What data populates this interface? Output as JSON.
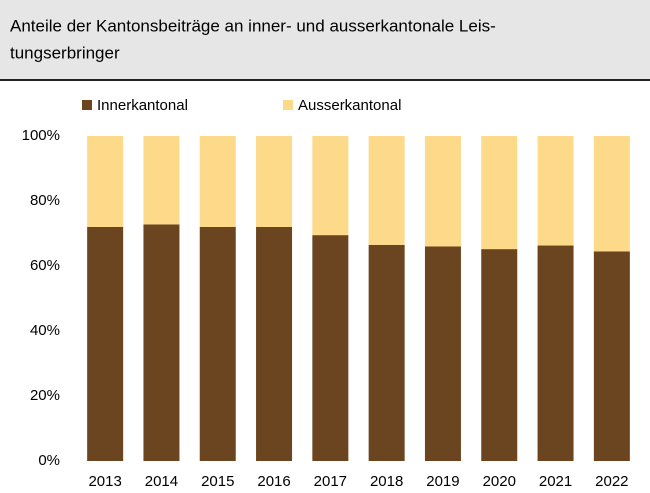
{
  "chart_data": {
    "type": "stacked_bar",
    "title_lines": [
      "Anteile der Kantonsbeiträge an inner- und ausserkantonale Leis-",
      "tungserbringer"
    ],
    "categories": [
      "2013",
      "2014",
      "2015",
      "2016",
      "2017",
      "2018",
      "2019",
      "2020",
      "2021",
      "2022"
    ],
    "series": [
      {
        "name": "Innerkantonal",
        "color": "#6b4420",
        "values": [
          72,
          72.8,
          72,
          72,
          69.5,
          66.5,
          66,
          65.2,
          66.3,
          64.5
        ]
      },
      {
        "name": "Ausserkantonal",
        "color": "#fdd98a",
        "values": [
          28,
          27.2,
          28,
          28,
          30.5,
          33.5,
          34,
          34.8,
          33.7,
          35.5
        ]
      }
    ],
    "ylim": [
      0,
      100
    ],
    "yticks": [
      {
        "value": 0,
        "label": "0%"
      },
      {
        "value": 20,
        "label": "20%"
      },
      {
        "value": 40,
        "label": "40%"
      },
      {
        "value": 60,
        "label": "60%"
      },
      {
        "value": 80,
        "label": "80%"
      },
      {
        "value": 100,
        "label": "100%"
      }
    ],
    "grid": false
  }
}
